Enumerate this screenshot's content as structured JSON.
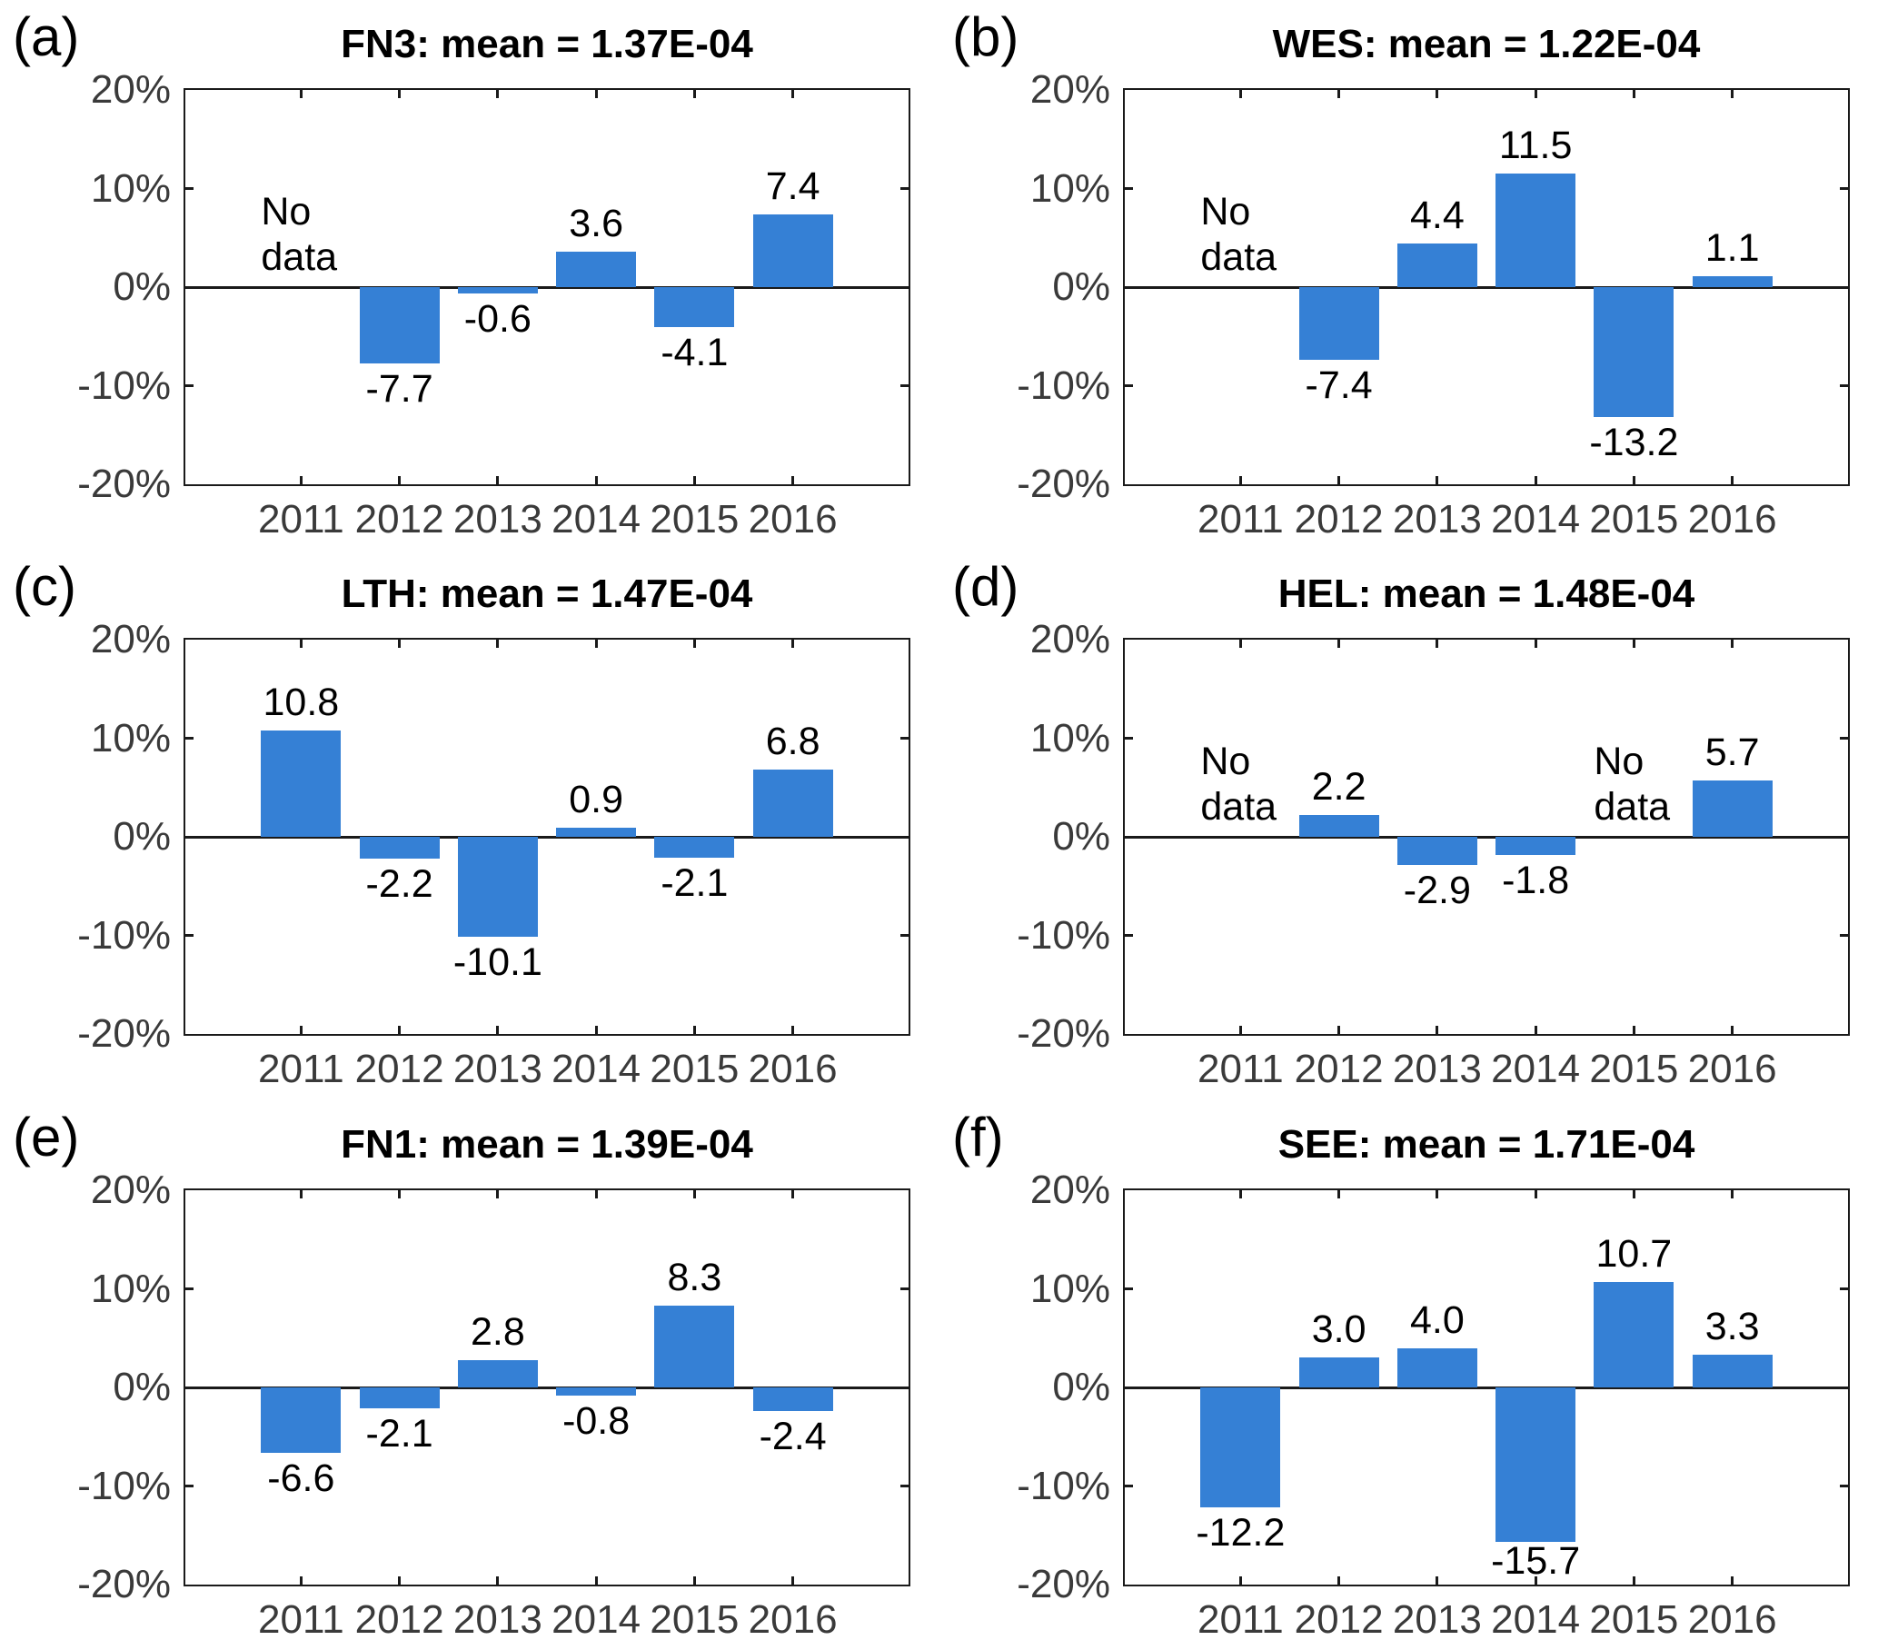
{
  "figure": {
    "background": "#ffffff",
    "bar_color": "#3580d5",
    "axis_color": "#1a1a1a",
    "tick_label_color": "#3a3a3a",
    "value_label_color": "#000000",
    "no_data_line1": "No",
    "no_data_line2": "data",
    "ytick_labels": [
      "20%",
      "10%",
      "0%",
      "-10%",
      "-20%"
    ],
    "ylim": [
      -20,
      20
    ],
    "grid": false,
    "legend": "none"
  },
  "chart_data": [
    {
      "type": "bar",
      "panel_label": "(a)",
      "station": "FN3",
      "mean": "1.37E-04",
      "title": "FN3: mean = 1.37E-04",
      "categories": [
        "2011",
        "2012",
        "2013",
        "2014",
        "2015",
        "2016"
      ],
      "values": [
        null,
        -7.7,
        -0.6,
        3.6,
        -4.1,
        7.4
      ],
      "labels": [
        null,
        "-7.7",
        "-0.6",
        "3.6",
        "-4.1",
        "7.4"
      ],
      "no_data_years": [
        "2011"
      ],
      "ylim": [
        -20,
        20
      ]
    },
    {
      "type": "bar",
      "panel_label": "(b)",
      "station": "WES",
      "mean": "1.22E-04",
      "title": "WES: mean = 1.22E-04",
      "categories": [
        "2011",
        "2012",
        "2013",
        "2014",
        "2015",
        "2016"
      ],
      "values": [
        null,
        -7.4,
        4.4,
        11.5,
        -13.2,
        1.1
      ],
      "labels": [
        null,
        "-7.4",
        "4.4",
        "11.5",
        "-13.2",
        "1.1"
      ],
      "no_data_years": [
        "2011"
      ],
      "ylim": [
        -20,
        20
      ]
    },
    {
      "type": "bar",
      "panel_label": "(c)",
      "station": "LTH",
      "mean": "1.47E-04",
      "title": "LTH: mean = 1.47E-04",
      "categories": [
        "2011",
        "2012",
        "2013",
        "2014",
        "2015",
        "2016"
      ],
      "values": [
        10.8,
        -2.2,
        -10.1,
        0.9,
        -2.1,
        6.8
      ],
      "labels": [
        "10.8",
        "-2.2",
        "-10.1",
        "0.9",
        "-2.1",
        "6.8"
      ],
      "no_data_years": [],
      "ylim": [
        -20,
        20
      ]
    },
    {
      "type": "bar",
      "panel_label": "(d)",
      "station": "HEL",
      "mean": "1.48E-04",
      "title": "HEL: mean = 1.48E-04",
      "categories": [
        "2011",
        "2012",
        "2013",
        "2014",
        "2015",
        "2016"
      ],
      "values": [
        null,
        2.2,
        -2.9,
        -1.8,
        null,
        5.7
      ],
      "labels": [
        null,
        "2.2",
        "-2.9",
        "-1.8",
        null,
        "5.7"
      ],
      "no_data_years": [
        "2011",
        "2015"
      ],
      "ylim": [
        -20,
        20
      ]
    },
    {
      "type": "bar",
      "panel_label": "(e)",
      "station": "FN1",
      "mean": "1.39E-04",
      "title": "FN1: mean = 1.39E-04",
      "categories": [
        "2011",
        "2012",
        "2013",
        "2014",
        "2015",
        "2016"
      ],
      "values": [
        -6.6,
        -2.1,
        2.8,
        -0.8,
        8.3,
        -2.4
      ],
      "labels": [
        "-6.6",
        "-2.1",
        "2.8",
        "-0.8",
        "8.3",
        "-2.4"
      ],
      "no_data_years": [],
      "ylim": [
        -20,
        20
      ]
    },
    {
      "type": "bar",
      "panel_label": "(f)",
      "station": "SEE",
      "mean": "1.71E-04",
      "title": "SEE: mean = 1.71E-04",
      "categories": [
        "2011",
        "2012",
        "2013",
        "2014",
        "2015",
        "2016"
      ],
      "values": [
        -12.2,
        3.0,
        4.0,
        -15.7,
        10.7,
        3.3
      ],
      "labels": [
        "-12.2",
        "3.0",
        "4.0",
        "-15.7",
        "10.7",
        "3.3"
      ],
      "no_data_years": [],
      "ylim": [
        -20,
        20
      ]
    }
  ]
}
